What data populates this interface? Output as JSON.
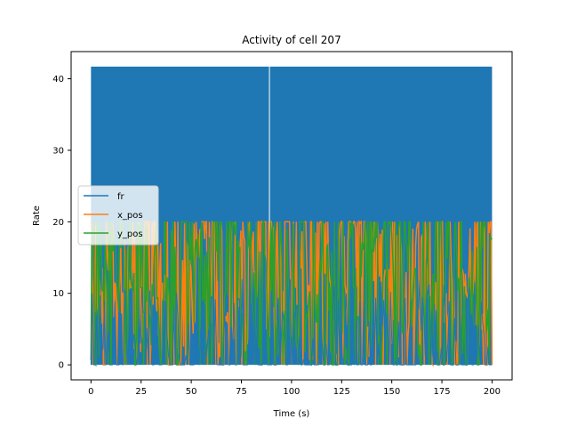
{
  "chart_data": {
    "type": "line",
    "title": "Activity of cell 207",
    "xlabel": "Time (s)",
    "ylabel": "Rate",
    "xlim": [
      -9.9,
      210
    ],
    "ylim": [
      -2.1,
      43.8
    ],
    "xticks": [
      0,
      25,
      50,
      75,
      100,
      125,
      150,
      175,
      200
    ],
    "xtick_labels": [
      "0",
      "25",
      "50",
      "75",
      "100",
      "125",
      "150",
      "175",
      "200"
    ],
    "yticks": [
      0,
      10,
      20,
      30,
      40
    ],
    "ytick_labels": [
      "0",
      "10",
      "20",
      "30",
      "40"
    ],
    "grid": false,
    "legend_position": "center-left",
    "series": [
      {
        "name": "fr",
        "color": "#1f77b4",
        "x_range": [
          0,
          200
        ],
        "y_range": [
          0,
          41.7
        ],
        "note_gap_at_x": 89
      },
      {
        "name": "x_pos",
        "color": "#ff7f0e",
        "x_range": [
          0,
          200
        ],
        "y_range": [
          0,
          20
        ]
      },
      {
        "name": "y_pos",
        "color": "#2ca02c",
        "x_range": [
          0,
          200
        ],
        "y_range": [
          0,
          20
        ]
      }
    ]
  }
}
